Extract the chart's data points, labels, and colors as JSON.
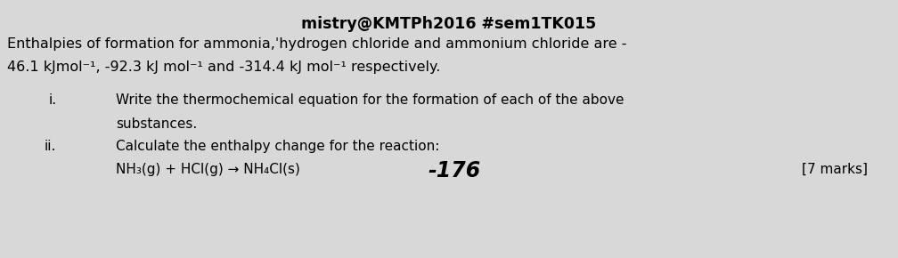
{
  "background_color": "#d8d8d8",
  "header_text": "mistry@KMTPh2016 #sem1TK015",
  "header_fontsize": 12.5,
  "header_fontweight": "bold",
  "line1": "Enthalpies of formation for ammonia,ˈhydrogen chloride and ammonium chloride are -",
  "line2": "46.1 kJmol⁻¹, -92.3 kJ mol⁻¹ and -314.4 kJ mol⁻¹ respectively.",
  "label_i": "i.",
  "label_ii": "ii.",
  "text_i_line1": "Write the thermochemical equation for the formation of each of the above",
  "text_i_line2": "substances.",
  "text_ii": "Calculate the enthalpy change for the reaction:",
  "reaction_line": "NH₃(g) + HCl(g) → NH₄Cl(s)",
  "answer": "-176",
  "marks": "[7 marks]",
  "main_fontsize": 11.5,
  "sub_fontsize": 11.0,
  "answer_fontsize": 17
}
